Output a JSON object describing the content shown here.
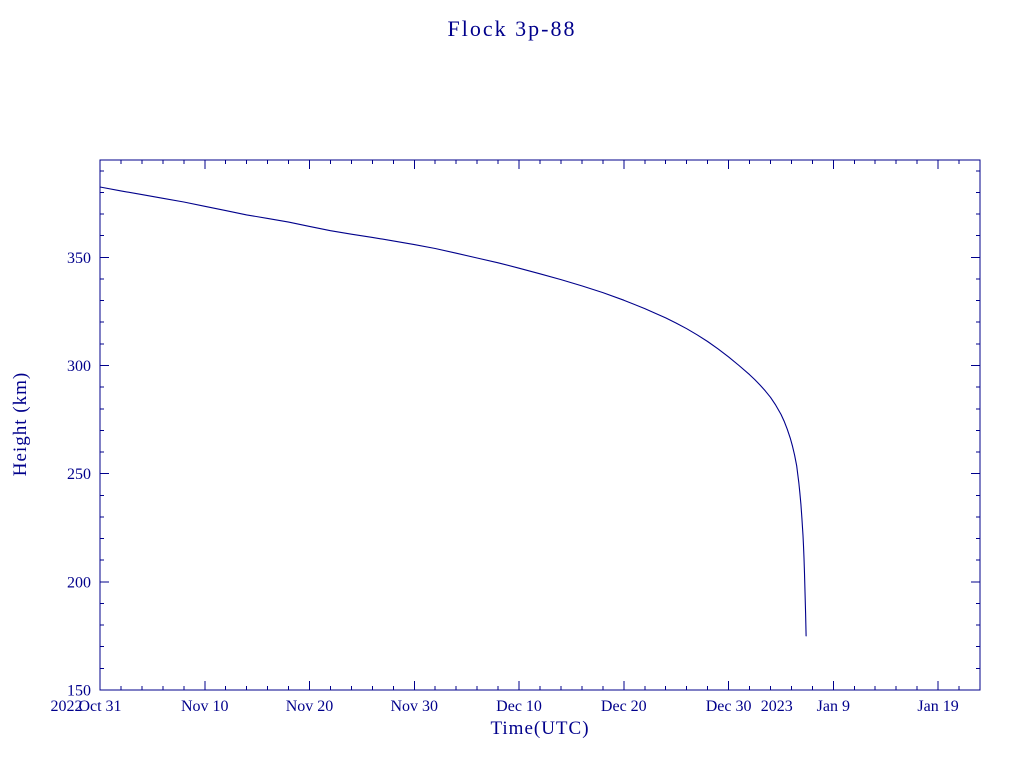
{
  "page": {
    "background": "#ffffff"
  },
  "chart_data": {
    "type": "line",
    "title": "Flock 3p-88",
    "xlabel": "Time(UTC)",
    "ylabel": "Height (km)",
    "axis_color": "#00008B",
    "line_color": "#00008B",
    "grid": false,
    "legend": "none",
    "x_axis": {
      "range_days": [
        0,
        84
      ],
      "major_ticks": [
        {
          "day": 0,
          "label": "Oct 31"
        },
        {
          "day": 10,
          "label": "Nov 10"
        },
        {
          "day": 20,
          "label": "Nov 20"
        },
        {
          "day": 30,
          "label": "Nov 30"
        },
        {
          "day": 40,
          "label": "Dec 10"
        },
        {
          "day": 50,
          "label": "Dec 20"
        },
        {
          "day": 60,
          "label": "Dec 30"
        },
        {
          "day": 70,
          "label": "Jan 9"
        },
        {
          "day": 80,
          "label": "Jan 19"
        }
      ],
      "minor_tick_step_days": 2,
      "year_labels": [
        {
          "day": -3.2,
          "label": "2022"
        },
        {
          "day": 64.6,
          "label": "2023"
        }
      ]
    },
    "y_axis": {
      "range": [
        150,
        395
      ],
      "major_ticks": [
        150,
        200,
        250,
        300,
        350
      ],
      "minor_tick_step": 10
    },
    "series": [
      {
        "name": "Flock 3p-88 height",
        "points": [
          [
            0,
            382.5
          ],
          [
            2,
            380.7
          ],
          [
            4,
            379.0
          ],
          [
            6,
            377.3
          ],
          [
            8,
            375.6
          ],
          [
            10,
            373.6
          ],
          [
            12,
            371.6
          ],
          [
            14,
            369.6
          ],
          [
            16,
            368.0
          ],
          [
            18,
            366.3
          ],
          [
            20,
            364.3
          ],
          [
            22,
            362.3
          ],
          [
            24,
            360.7
          ],
          [
            26,
            359.2
          ],
          [
            28,
            357.6
          ],
          [
            30,
            355.9
          ],
          [
            32,
            354.1
          ],
          [
            34,
            351.9
          ],
          [
            36,
            349.7
          ],
          [
            38,
            347.5
          ],
          [
            40,
            345.0
          ],
          [
            42,
            342.4
          ],
          [
            44,
            339.7
          ],
          [
            46,
            336.8
          ],
          [
            48,
            333.7
          ],
          [
            50,
            330.2
          ],
          [
            52,
            326.3
          ],
          [
            53,
            324.2
          ],
          [
            54,
            322.0
          ],
          [
            55,
            319.6
          ],
          [
            56,
            317.0
          ],
          [
            57,
            314.2
          ],
          [
            58,
            311.1
          ],
          [
            59,
            307.7
          ],
          [
            60,
            304.0
          ],
          [
            61,
            300.0
          ],
          [
            62,
            295.8
          ],
          [
            62.5,
            293.5
          ],
          [
            63,
            291.0
          ],
          [
            63.5,
            288.3
          ],
          [
            64,
            285.3
          ],
          [
            64.5,
            281.7
          ],
          [
            65,
            277.4
          ],
          [
            65.3,
            274.3
          ],
          [
            65.6,
            270.6
          ],
          [
            65.9,
            266.2
          ],
          [
            66.1,
            262.7
          ],
          [
            66.3,
            258.6
          ],
          [
            66.5,
            253.6
          ],
          [
            66.6,
            249.9
          ],
          [
            66.7,
            245.9
          ],
          [
            66.8,
            241.4
          ],
          [
            66.9,
            235.9
          ],
          [
            67,
            229.4
          ],
          [
            67.05,
            225.7
          ],
          [
            67.1,
            221.4
          ],
          [
            67.15,
            216.6
          ],
          [
            67.2,
            210.9
          ],
          [
            67.25,
            203.9
          ],
          [
            67.3,
            195.4
          ],
          [
            67.35,
            185.4
          ],
          [
            67.4,
            175.0
          ]
        ]
      }
    ]
  }
}
